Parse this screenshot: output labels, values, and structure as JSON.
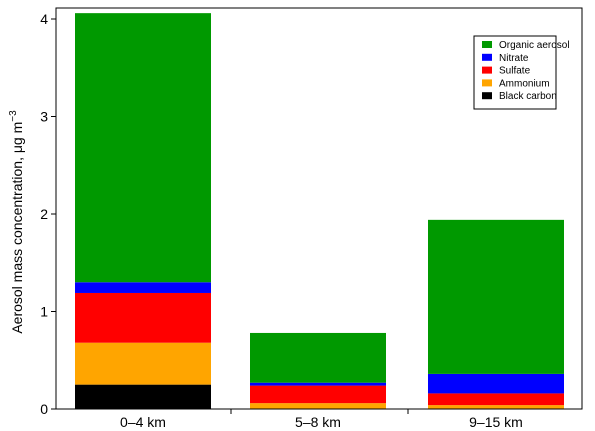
{
  "chart_data": {
    "type": "bar",
    "stacked": true,
    "categories": [
      "0–4 km",
      "5–8 km",
      "9–15 km"
    ],
    "series": [
      {
        "name": "Black carbon",
        "color": "#000000",
        "values": [
          0.25,
          0.0,
          0.0
        ]
      },
      {
        "name": "Ammonium",
        "color": "#ffa500",
        "values": [
          0.43,
          0.06,
          0.04
        ]
      },
      {
        "name": "Sulfate",
        "color": "#ff0000",
        "values": [
          0.51,
          0.18,
          0.12
        ]
      },
      {
        "name": "Nitrate",
        "color": "#0000ff",
        "values": [
          0.11,
          0.03,
          0.2
        ]
      },
      {
        "name": "Organic aerosol",
        "color": "#009900",
        "values": [
          2.76,
          0.51,
          1.58
        ]
      }
    ],
    "ylabel_main": "Aerosol mass concentration, μg m",
    "ylabel_sup": "−3",
    "ylim": [
      0,
      4.1
    ],
    "yticks": [
      "0",
      "1",
      "2",
      "3",
      "4"
    ],
    "grid": false,
    "legend_position": "top-right",
    "legend_order": [
      "Organic aerosol",
      "Nitrate",
      "Sulfate",
      "Ammonium",
      "Black carbon"
    ]
  }
}
